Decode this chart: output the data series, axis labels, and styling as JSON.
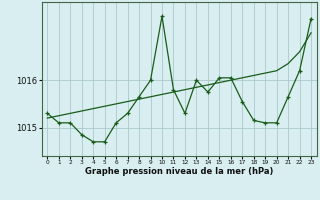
{
  "x": [
    0,
    1,
    2,
    3,
    4,
    5,
    6,
    7,
    8,
    9,
    10,
    11,
    12,
    13,
    14,
    15,
    16,
    17,
    18,
    19,
    20,
    21,
    22,
    23
  ],
  "y_main": [
    1015.3,
    1015.1,
    1015.1,
    1014.85,
    1014.7,
    1014.7,
    1015.1,
    1015.3,
    1015.65,
    1016.0,
    1017.35,
    1015.8,
    1015.3,
    1016.0,
    1015.75,
    1016.05,
    1016.05,
    1015.55,
    1015.15,
    1015.1,
    1015.1,
    1015.65,
    1016.2,
    1017.3
  ],
  "y_trend": [
    1015.2,
    1015.25,
    1015.3,
    1015.35,
    1015.4,
    1015.45,
    1015.5,
    1015.55,
    1015.6,
    1015.65,
    1015.7,
    1015.75,
    1015.8,
    1015.85,
    1015.9,
    1015.95,
    1016.0,
    1016.05,
    1016.1,
    1016.15,
    1016.2,
    1016.35,
    1016.6,
    1017.0
  ],
  "ylim": [
    1014.4,
    1017.65
  ],
  "yticks": [
    1015.0,
    1016.0
  ],
  "xlim": [
    -0.5,
    23.5
  ],
  "bg_color": "#d8eef0",
  "line_color": "#1a5c1a",
  "grid_color": "#aac8cc",
  "xlabel": "Graphe pression niveau de la mer (hPa)"
}
